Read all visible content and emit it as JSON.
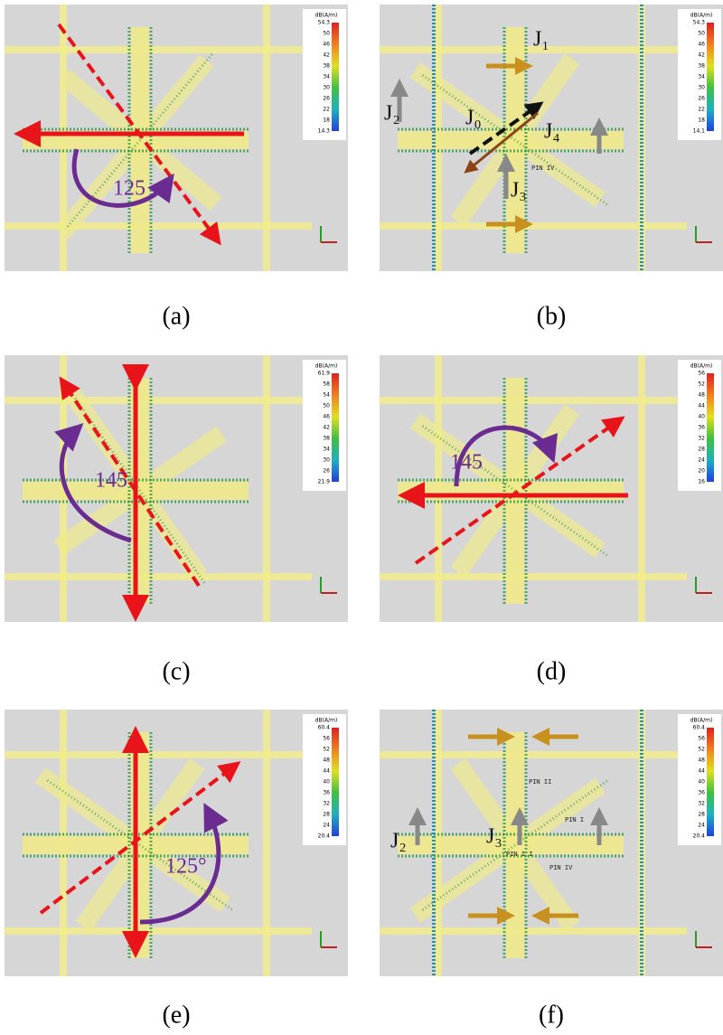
{
  "panels": [
    {
      "label": "(a)",
      "colorbar": {
        "title": "dB(A/m)",
        "ticks": [
          "54.3",
          "50",
          "46",
          "42",
          "38",
          "34",
          "30",
          "26",
          "22",
          "18",
          "14.3"
        ]
      },
      "annotations": [
        "125"
      ]
    },
    {
      "label": "(b)",
      "colorbar": {
        "title": "dB(A/m)",
        "ticks": [
          "54.3",
          "50",
          "46",
          "42",
          "38",
          "34",
          "30",
          "26",
          "22",
          "18",
          "14.1"
        ]
      },
      "annotations": [
        "J₁",
        "J₂",
        "J₀",
        "J₄",
        "J₃",
        "PIN IV"
      ]
    },
    {
      "label": "(c)",
      "colorbar": {
        "title": "dB(A/m)",
        "ticks": [
          "61.9",
          "58",
          "54",
          "50",
          "46",
          "42",
          "38",
          "34",
          "30",
          "26",
          "21.9"
        ]
      },
      "annotations": [
        "145"
      ]
    },
    {
      "label": "(d)",
      "colorbar": {
        "title": "dB(A/m)",
        "ticks": [
          "56",
          "52",
          "48",
          "44",
          "40",
          "36",
          "32",
          "28",
          "24",
          "20",
          "16"
        ]
      },
      "annotations": [
        "145"
      ]
    },
    {
      "label": "(e)",
      "colorbar": {
        "title": "dB(A/m)",
        "ticks": [
          "60.4",
          "56",
          "52",
          "48",
          "44",
          "40",
          "36",
          "32",
          "28",
          "24",
          "20.4"
        ]
      },
      "annotations": [
        "125°"
      ]
    },
    {
      "label": "(f)",
      "colorbar": {
        "title": "dB(A/m)",
        "ticks": [
          "60.4",
          "56",
          "52",
          "48",
          "44",
          "40",
          "36",
          "32",
          "28",
          "24",
          "20.4"
        ]
      },
      "annotations": [
        "J₂",
        "J₃",
        "PIN II",
        "PIN I",
        "PIN IV",
        "PIN I I"
      ]
    }
  ]
}
